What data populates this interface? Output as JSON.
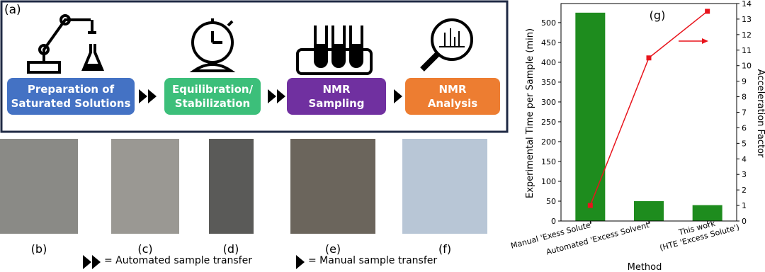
{
  "panel_label": "(a)",
  "steps": [
    {
      "label": "Preparation of\nSaturated Solutions",
      "color": "#4472c4"
    },
    {
      "label": "Equilibration/\nStabilization",
      "color": "#3cbf7a"
    },
    {
      "label": "NMR\nSampling",
      "color": "#7030a0"
    },
    {
      "label": "NMR\nAnalysis",
      "color": "#ed7d31"
    }
  ],
  "photo_captions": [
    "(b)",
    "(c)",
    "(d)",
    "(e)",
    "(f)"
  ],
  "legend": [
    "= Automated sample transfer",
    "= Manual sample transfer"
  ],
  "chart_data": {
    "type": "bar-line",
    "annotation": "(g)",
    "categories": [
      "Manual 'Exess Solute'",
      "Automated 'Excess Solvent'",
      "This work\n(HTE 'Excess Solute')"
    ],
    "xlabel": "Method",
    "ylabel": "Experimental Time per Sample (min)",
    "y2label": "Acceleration Factor",
    "series": [
      {
        "name": "Experimental Time per Sample",
        "type": "bar",
        "color": "#1e8c1e",
        "values": [
          525,
          50,
          40
        ]
      },
      {
        "name": "Acceleration Factor",
        "type": "line",
        "axis": "y2",
        "color": "#e8141c",
        "values": [
          1,
          10.5,
          13.5
        ]
      }
    ],
    "ylim": [
      0,
      548
    ],
    "yticks": [
      0,
      50,
      100,
      150,
      200,
      250,
      300,
      350,
      400,
      450,
      500
    ],
    "y2lim": [
      0,
      14
    ],
    "y2ticks": [
      0,
      1,
      2,
      3,
      4,
      5,
      6,
      7,
      8,
      9,
      10,
      11,
      12,
      13,
      14
    ]
  }
}
